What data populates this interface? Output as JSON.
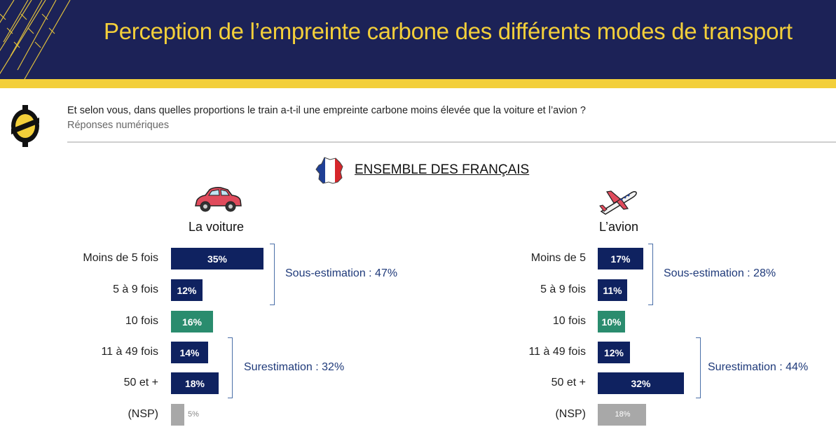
{
  "header": {
    "title": "Perception de l’empreinte carbone des différents modes de transport"
  },
  "question": {
    "text": "Et selon vous, dans quelles proportions le train a-t-il une empreinte carbone moins élevée que la voiture et l’avion ?",
    "subtext": "Réponses numériques"
  },
  "section": {
    "title": "ENSEMBLE DES FRANÇAIS"
  },
  "colors": {
    "navy": "#0f2260",
    "teal": "#2a8c6e",
    "gray": "#a8a8a8",
    "yellow": "#f3cf3a",
    "header_bg": "#1c2257"
  },
  "chart_data": [
    {
      "type": "bar",
      "orientation": "horizontal",
      "title": "La voiture",
      "categories": [
        "Moins de 5 fois",
        "5 à 9 fois",
        "10 fois",
        "11 à 49 fois",
        "50 et +",
        "(NSP)"
      ],
      "values": [
        35,
        12,
        16,
        14,
        18,
        5
      ],
      "value_labels": [
        "35%",
        "12%",
        "16%",
        "14%",
        "18%",
        "5%"
      ],
      "bar_colors": [
        "#0f2260",
        "#0f2260",
        "#2a8c6e",
        "#0f2260",
        "#0f2260",
        "#a8a8a8"
      ],
      "groups": [
        {
          "label": "Sous-estimation : 47%",
          "from": 0,
          "to": 1
        },
        {
          "label": "Surestimation : 32%",
          "from": 3,
          "to": 4
        }
      ]
    },
    {
      "type": "bar",
      "orientation": "horizontal",
      "title": "L’avion",
      "categories": [
        "Moins de 5",
        "5 à 9 fois",
        "10 fois",
        "11 à 49 fois",
        "50 et +",
        "(NSP)"
      ],
      "values": [
        17,
        11,
        10,
        12,
        32,
        18
      ],
      "value_labels": [
        "17%",
        "11%",
        "10%",
        "12%",
        "32%",
        "18%"
      ],
      "bar_colors": [
        "#0f2260",
        "#0f2260",
        "#2a8c6e",
        "#0f2260",
        "#0f2260",
        "#a8a8a8"
      ],
      "groups": [
        {
          "label": "Sous-estimation : 28%",
          "from": 0,
          "to": 1
        },
        {
          "label": "Surestimation : 44%",
          "from": 3,
          "to": 4
        }
      ]
    }
  ]
}
